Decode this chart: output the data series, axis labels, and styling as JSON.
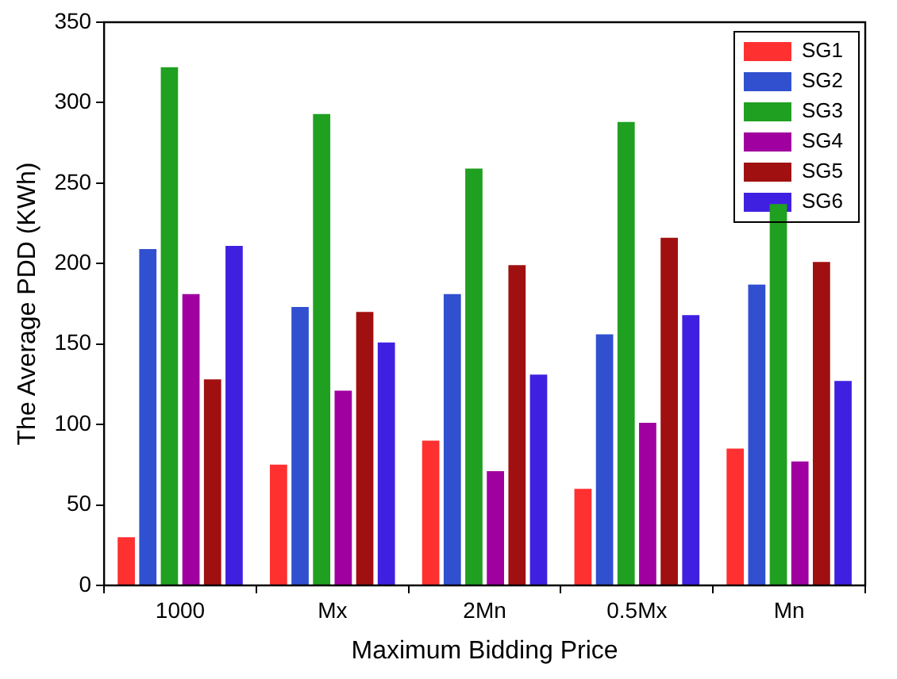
{
  "chart_data": {
    "type": "bar",
    "xlabel": "Maximum Bidding Price",
    "ylabel": "The Average PDD (KWh)",
    "categories": [
      "1000",
      "Mx",
      "2Mn",
      "0.5Mx",
      "Mn"
    ],
    "series": [
      {
        "name": "SG1",
        "color": "#ff3030",
        "values": [
          30,
          75,
          90,
          60,
          85
        ]
      },
      {
        "name": "SG2",
        "color": "#3050d0",
        "values": [
          209,
          173,
          181,
          156,
          187
        ]
      },
      {
        "name": "SG3",
        "color": "#20a020",
        "values": [
          322,
          293,
          259,
          288,
          237
        ]
      },
      {
        "name": "SG4",
        "color": "#a000a0",
        "values": [
          181,
          121,
          71,
          101,
          77
        ]
      },
      {
        "name": "SG5",
        "color": "#a01010",
        "values": [
          128,
          170,
          199,
          216,
          201
        ]
      },
      {
        "name": "SG6",
        "color": "#4020e0",
        "values": [
          211,
          151,
          131,
          168,
          127
        ]
      }
    ],
    "ylim": [
      0,
      350
    ],
    "yticks": [
      0,
      50,
      100,
      150,
      200,
      250,
      300,
      350
    ],
    "grid": false,
    "legend": "top right"
  }
}
